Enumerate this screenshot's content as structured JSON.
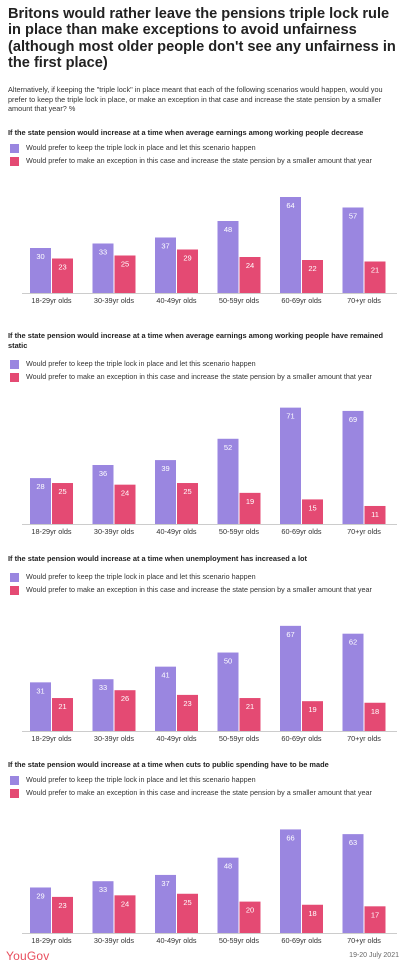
{
  "title": "Britons would rather leave the pensions triple lock rule in place than make exceptions to avoid unfairness (although most older people don't see any unfairness in the first place)",
  "subtitle": "Alternatively, if keeping the \"triple lock\" in place meant that each of the following scenarios would happen, would you prefer to keep the triple lock in place, or make an exception in that case and increase the state pension by a smaller amount that year? %",
  "legend": {
    "keep": "Would prefer to keep the triple lock in place and let this scenario happen",
    "exception": "Would prefer to make an exception in this case and increase the state pension by a smaller amount that year"
  },
  "colors": {
    "keep": "#9a86e0",
    "exception": "#e44a73"
  },
  "footer": {
    "brand": "YouGov",
    "date": "19-20 July 2021"
  },
  "chart_data": [
    {
      "type": "bar",
      "title": "If the state pension would increase at a time when average earnings among working people decrease",
      "categories": [
        "18-29yr olds",
        "30-39yr olds",
        "40-49yr olds",
        "50-59yr olds",
        "60-69yr olds",
        "70+yr olds"
      ],
      "series": [
        {
          "name": "Would prefer to keep the triple lock in place and let this scenario happen",
          "values": [
            30,
            33,
            37,
            48,
            64,
            57
          ]
        },
        {
          "name": "Would prefer to make an exception in this case and increase the state pension by a smaller amount that year",
          "values": [
            23,
            25,
            29,
            24,
            22,
            21
          ]
        }
      ]
    },
    {
      "type": "bar",
      "title": "If the state pension would increase at a time when average earnings among working people have remained static",
      "categories": [
        "18-29yr olds",
        "30-39yr olds",
        "40-49yr olds",
        "50-59yr olds",
        "60-69yr olds",
        "70+yr olds"
      ],
      "series": [
        {
          "name": "Would prefer to keep the triple lock in place and let this scenario happen",
          "values": [
            28,
            36,
            39,
            52,
            71,
            69
          ]
        },
        {
          "name": "Would prefer to make an exception in this case and increase the state pension by a smaller amount that year",
          "values": [
            25,
            24,
            25,
            19,
            15,
            11
          ]
        }
      ]
    },
    {
      "type": "bar",
      "title": "If the state pension would increase at a time when unemployment has increased a lot",
      "categories": [
        "18-29yr olds",
        "30-39yr olds",
        "40-49yr olds",
        "50-59yr olds",
        "60-69yr olds",
        "70+yr olds"
      ],
      "series": [
        {
          "name": "Would prefer to keep the triple lock in place and let this scenario happen",
          "values": [
            31,
            33,
            41,
            50,
            67,
            62
          ]
        },
        {
          "name": "Would prefer to make an exception in this case and increase the state pension by a smaller amount that year",
          "values": [
            21,
            26,
            23,
            21,
            19,
            18
          ]
        }
      ]
    },
    {
      "type": "bar",
      "title": "If the state pension would increase at a time when cuts to public spending have to be made",
      "categories": [
        "18-29yr olds",
        "30-39yr olds",
        "40-49yr olds",
        "50-59yr olds",
        "60-69yr olds",
        "70+yr olds"
      ],
      "series": [
        {
          "name": "Would prefer to keep the triple lock in place and let this scenario happen",
          "values": [
            29,
            33,
            37,
            48,
            66,
            63
          ]
        },
        {
          "name": "Would prefer to make an exception in this case and increase the state pension by a smaller amount that year",
          "values": [
            23,
            24,
            25,
            20,
            18,
            17
          ]
        }
      ]
    }
  ]
}
